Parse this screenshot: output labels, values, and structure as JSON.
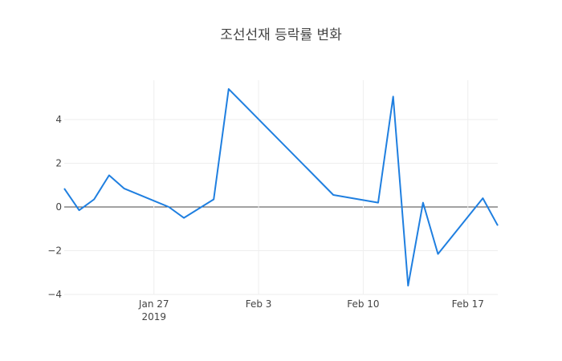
{
  "colors": {
    "line": "#1f7fe0",
    "grid": "#eeeeee",
    "zero": "#444444",
    "text": "#444444"
  },
  "chart_data": {
    "type": "line",
    "title": "조선선재 등락률 변화",
    "xlabel": "",
    "ylabel": "",
    "x_is_date": true,
    "xlim": [
      "2019-01-21",
      "2019-02-19"
    ],
    "ylim": [
      -4,
      5.8
    ],
    "grid": true,
    "x_ticks": [
      {
        "date": "2019-01-27",
        "label": "Jan 27",
        "sublabel": "2019"
      },
      {
        "date": "2019-02-03",
        "label": "Feb 3",
        "sublabel": ""
      },
      {
        "date": "2019-02-10",
        "label": "Feb 10",
        "sublabel": ""
      },
      {
        "date": "2019-02-17",
        "label": "Feb 17",
        "sublabel": ""
      }
    ],
    "y_ticks": [
      {
        "value": 4,
        "label": "4"
      },
      {
        "value": 2,
        "label": "2"
      },
      {
        "value": 0,
        "label": "0"
      },
      {
        "value": -2,
        "label": "−2"
      },
      {
        "value": -4,
        "label": "−4"
      }
    ],
    "series": [
      {
        "x": [
          "2019-01-21",
          "2019-01-22",
          "2019-01-23",
          "2019-01-24",
          "2019-01-25",
          "2019-01-28",
          "2019-01-29",
          "2019-01-31",
          "2019-02-01",
          "2019-02-08",
          "2019-02-11",
          "2019-02-12",
          "2019-02-13",
          "2019-02-14",
          "2019-02-15",
          "2019-02-18",
          "2019-02-19"
        ],
        "y": [
          0.85,
          -0.15,
          0.35,
          1.45,
          0.85,
          0.0,
          -0.5,
          0.35,
          5.4,
          0.55,
          0.2,
          5.05,
          -3.6,
          0.2,
          -2.15,
          0.4,
          -0.85
        ]
      }
    ]
  }
}
